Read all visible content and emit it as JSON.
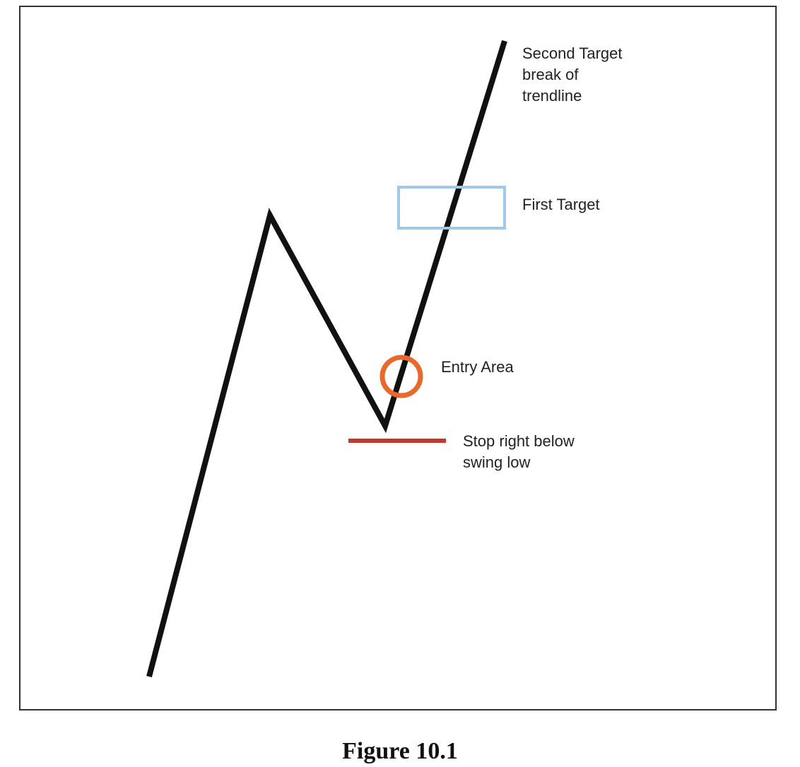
{
  "diagram": {
    "labels": {
      "second_target": [
        "Second Target",
        "break of",
        "trendline"
      ],
      "first_target": "First Target",
      "entry_area": "Entry Area",
      "stop": [
        "Stop right below",
        "swing low"
      ]
    },
    "colors": {
      "price_line": "#111111",
      "first_target_box": "#9ecae8",
      "entry_circle": "#e8692c",
      "stop_line": "#c0392b",
      "frame": "#333333"
    }
  },
  "caption": "Figure 10.1"
}
